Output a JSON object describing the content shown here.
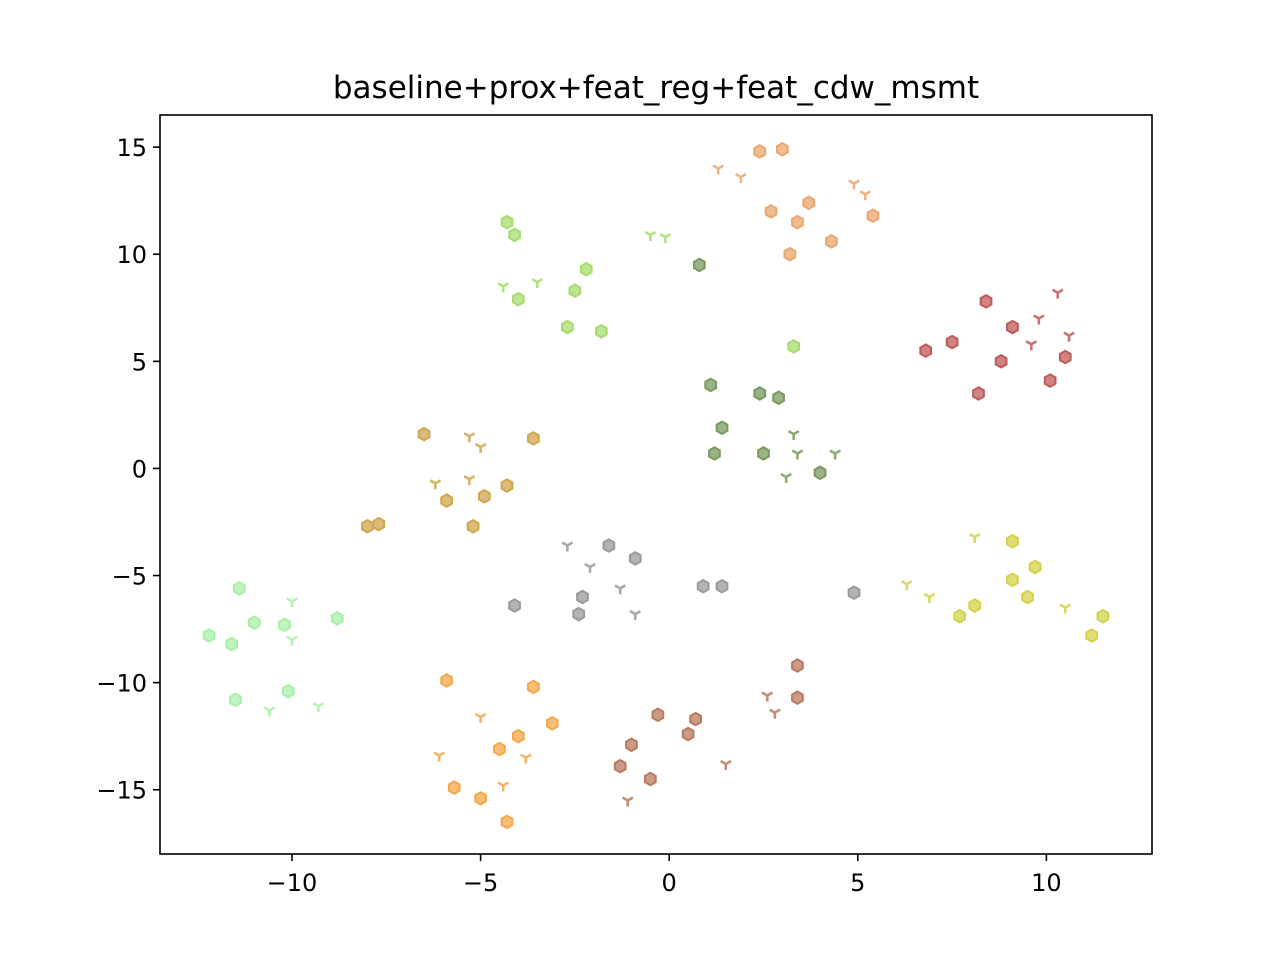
{
  "chart_data": {
    "type": "scatter",
    "title": "baseline+prox+feat_reg+feat_cdw_msmt",
    "xlabel": "",
    "ylabel": "",
    "xlim": [
      -13.5,
      12.8
    ],
    "ylim": [
      -18.0,
      16.5
    ],
    "xticks": [
      -10,
      -5,
      0,
      5,
      10
    ],
    "yticks": [
      -15,
      -10,
      -5,
      0,
      5,
      10,
      15
    ],
    "xtick_labels": [
      "−10",
      "−5",
      "0",
      "5",
      "10"
    ],
    "ytick_labels": [
      "−15",
      "−10",
      "−5",
      "0",
      "5",
      "10",
      "15"
    ],
    "grid": false,
    "legend": "none",
    "marker_legend": {
      "hexagon": "hexagon marker",
      "tri_down": "Y-shaped marker"
    },
    "series": [
      {
        "color": "#e8a86e",
        "points": [
          {
            "x": 2.4,
            "y": 14.8,
            "m": "hexagon"
          },
          {
            "x": 3.0,
            "y": 14.9,
            "m": "hexagon"
          },
          {
            "x": 1.3,
            "y": 14.0,
            "m": "tri_down"
          },
          {
            "x": 1.9,
            "y": 13.6,
            "m": "tri_down"
          },
          {
            "x": 4.9,
            "y": 13.3,
            "m": "tri_down"
          },
          {
            "x": 5.2,
            "y": 12.8,
            "m": "tri_down"
          },
          {
            "x": 3.7,
            "y": 12.4,
            "m": "hexagon"
          },
          {
            "x": 2.7,
            "y": 12.0,
            "m": "hexagon"
          },
          {
            "x": 5.4,
            "y": 11.8,
            "m": "hexagon"
          },
          {
            "x": 3.4,
            "y": 11.5,
            "m": "hexagon"
          },
          {
            "x": 4.3,
            "y": 10.6,
            "m": "hexagon"
          },
          {
            "x": 3.2,
            "y": 10.0,
            "m": "hexagon"
          }
        ]
      },
      {
        "color": "#a8dc6e",
        "points": [
          {
            "x": -4.3,
            "y": 11.5,
            "m": "hexagon"
          },
          {
            "x": -4.1,
            "y": 10.9,
            "m": "hexagon"
          },
          {
            "x": -0.5,
            "y": 10.9,
            "m": "tri_down"
          },
          {
            "x": -0.1,
            "y": 10.8,
            "m": "tri_down"
          },
          {
            "x": -2.2,
            "y": 9.3,
            "m": "hexagon"
          },
          {
            "x": -3.5,
            "y": 8.7,
            "m": "tri_down"
          },
          {
            "x": -4.4,
            "y": 8.5,
            "m": "tri_down"
          },
          {
            "x": -2.5,
            "y": 8.3,
            "m": "hexagon"
          },
          {
            "x": -4.0,
            "y": 7.9,
            "m": "hexagon"
          },
          {
            "x": -2.7,
            "y": 6.6,
            "m": "hexagon"
          },
          {
            "x": -1.8,
            "y": 6.4,
            "m": "hexagon"
          },
          {
            "x": 3.3,
            "y": 5.7,
            "m": "hexagon"
          }
        ]
      },
      {
        "color": "#7a9a5e",
        "points": [
          {
            "x": 0.8,
            "y": 9.5,
            "m": "hexagon"
          },
          {
            "x": 1.1,
            "y": 3.9,
            "m": "hexagon"
          },
          {
            "x": 2.4,
            "y": 3.5,
            "m": "hexagon"
          },
          {
            "x": 2.9,
            "y": 3.3,
            "m": "hexagon"
          },
          {
            "x": 1.4,
            "y": 1.9,
            "m": "hexagon"
          },
          {
            "x": 3.3,
            "y": 1.6,
            "m": "tri_down"
          },
          {
            "x": 1.2,
            "y": 0.7,
            "m": "hexagon"
          },
          {
            "x": 2.5,
            "y": 0.7,
            "m": "hexagon"
          },
          {
            "x": 3.4,
            "y": 0.7,
            "m": "tri_down"
          },
          {
            "x": 4.4,
            "y": 0.7,
            "m": "tri_down"
          },
          {
            "x": 4.0,
            "y": -0.2,
            "m": "hexagon"
          },
          {
            "x": 3.1,
            "y": -0.4,
            "m": "tri_down"
          }
        ]
      },
      {
        "color": "#c05a5a",
        "points": [
          {
            "x": 10.3,
            "y": 8.2,
            "m": "tri_down"
          },
          {
            "x": 8.4,
            "y": 7.8,
            "m": "hexagon"
          },
          {
            "x": 9.8,
            "y": 7.0,
            "m": "tri_down"
          },
          {
            "x": 9.1,
            "y": 6.6,
            "m": "hexagon"
          },
          {
            "x": 10.6,
            "y": 6.2,
            "m": "tri_down"
          },
          {
            "x": 7.5,
            "y": 5.9,
            "m": "hexagon"
          },
          {
            "x": 9.6,
            "y": 5.8,
            "m": "tri_down"
          },
          {
            "x": 6.8,
            "y": 5.5,
            "m": "hexagon"
          },
          {
            "x": 10.5,
            "y": 5.2,
            "m": "hexagon"
          },
          {
            "x": 8.8,
            "y": 5.0,
            "m": "hexagon"
          },
          {
            "x": 10.1,
            "y": 4.1,
            "m": "hexagon"
          },
          {
            "x": 8.2,
            "y": 3.5,
            "m": "hexagon"
          }
        ]
      },
      {
        "color": "#d0a64e",
        "points": [
          {
            "x": -6.5,
            "y": 1.6,
            "m": "hexagon"
          },
          {
            "x": -5.3,
            "y": 1.5,
            "m": "tri_down"
          },
          {
            "x": -3.6,
            "y": 1.4,
            "m": "hexagon"
          },
          {
            "x": -5.0,
            "y": 1.0,
            "m": "tri_down"
          },
          {
            "x": -5.3,
            "y": -0.5,
            "m": "tri_down"
          },
          {
            "x": -6.2,
            "y": -0.7,
            "m": "tri_down"
          },
          {
            "x": -4.3,
            "y": -0.8,
            "m": "hexagon"
          },
          {
            "x": -4.9,
            "y": -1.3,
            "m": "hexagon"
          },
          {
            "x": -5.9,
            "y": -1.5,
            "m": "hexagon"
          },
          {
            "x": -8.0,
            "y": -2.7,
            "m": "hexagon"
          },
          {
            "x": -7.7,
            "y": -2.6,
            "m": "hexagon"
          },
          {
            "x": -5.2,
            "y": -2.7,
            "m": "hexagon"
          }
        ]
      },
      {
        "color": "#9a9a9a",
        "points": [
          {
            "x": -2.7,
            "y": -3.6,
            "m": "tri_down"
          },
          {
            "x": -1.6,
            "y": -3.6,
            "m": "hexagon"
          },
          {
            "x": -0.9,
            "y": -4.2,
            "m": "hexagon"
          },
          {
            "x": -2.1,
            "y": -4.6,
            "m": "tri_down"
          },
          {
            "x": 0.9,
            "y": -5.5,
            "m": "hexagon"
          },
          {
            "x": 1.4,
            "y": -5.5,
            "m": "hexagon"
          },
          {
            "x": -1.3,
            "y": -5.6,
            "m": "tri_down"
          },
          {
            "x": 4.9,
            "y": -5.8,
            "m": "hexagon"
          },
          {
            "x": -2.3,
            "y": -6.0,
            "m": "hexagon"
          },
          {
            "x": -4.1,
            "y": -6.4,
            "m": "hexagon"
          },
          {
            "x": -2.4,
            "y": -6.8,
            "m": "hexagon"
          },
          {
            "x": -0.9,
            "y": -6.8,
            "m": "tri_down"
          }
        ]
      },
      {
        "color": "#d4d24a",
        "points": [
          {
            "x": 8.1,
            "y": -3.2,
            "m": "tri_down"
          },
          {
            "x": 9.1,
            "y": -3.4,
            "m": "hexagon"
          },
          {
            "x": 9.7,
            "y": -4.6,
            "m": "hexagon"
          },
          {
            "x": 9.1,
            "y": -5.2,
            "m": "hexagon"
          },
          {
            "x": 6.3,
            "y": -5.4,
            "m": "tri_down"
          },
          {
            "x": 6.9,
            "y": -6.0,
            "m": "tri_down"
          },
          {
            "x": 9.5,
            "y": -6.0,
            "m": "hexagon"
          },
          {
            "x": 8.1,
            "y": -6.4,
            "m": "hexagon"
          },
          {
            "x": 10.5,
            "y": -6.5,
            "m": "tri_down"
          },
          {
            "x": 7.7,
            "y": -6.9,
            "m": "hexagon"
          },
          {
            "x": 11.5,
            "y": -6.9,
            "m": "hexagon"
          },
          {
            "x": 11.2,
            "y": -7.8,
            "m": "hexagon"
          }
        ]
      },
      {
        "color": "#a8f0a8",
        "points": [
          {
            "x": -11.4,
            "y": -5.6,
            "m": "hexagon"
          },
          {
            "x": -10.0,
            "y": -6.2,
            "m": "tri_down"
          },
          {
            "x": -8.8,
            "y": -7.0,
            "m": "hexagon"
          },
          {
            "x": -11.0,
            "y": -7.2,
            "m": "hexagon"
          },
          {
            "x": -10.2,
            "y": -7.3,
            "m": "hexagon"
          },
          {
            "x": -12.2,
            "y": -7.8,
            "m": "hexagon"
          },
          {
            "x": -10.0,
            "y": -8.0,
            "m": "tri_down"
          },
          {
            "x": -11.6,
            "y": -8.2,
            "m": "hexagon"
          },
          {
            "x": -10.1,
            "y": -10.4,
            "m": "hexagon"
          },
          {
            "x": -11.5,
            "y": -10.8,
            "m": "hexagon"
          },
          {
            "x": -9.3,
            "y": -11.1,
            "m": "tri_down"
          },
          {
            "x": -10.6,
            "y": -11.3,
            "m": "tri_down"
          }
        ]
      },
      {
        "color": "#f5a84a",
        "points": [
          {
            "x": -5.9,
            "y": -9.9,
            "m": "hexagon"
          },
          {
            "x": -3.6,
            "y": -10.2,
            "m": "hexagon"
          },
          {
            "x": -5.0,
            "y": -11.6,
            "m": "tri_down"
          },
          {
            "x": -3.1,
            "y": -11.9,
            "m": "hexagon"
          },
          {
            "x": -4.0,
            "y": -12.5,
            "m": "hexagon"
          },
          {
            "x": -4.5,
            "y": -13.1,
            "m": "hexagon"
          },
          {
            "x": -6.1,
            "y": -13.4,
            "m": "tri_down"
          },
          {
            "x": -3.8,
            "y": -13.5,
            "m": "tri_down"
          },
          {
            "x": -5.7,
            "y": -14.9,
            "m": "hexagon"
          },
          {
            "x": -4.4,
            "y": -14.8,
            "m": "tri_down"
          },
          {
            "x": -5.0,
            "y": -15.4,
            "m": "hexagon"
          },
          {
            "x": -4.3,
            "y": -16.5,
            "m": "hexagon"
          }
        ]
      },
      {
        "color": "#b87a5e",
        "points": [
          {
            "x": 3.4,
            "y": -9.2,
            "m": "hexagon"
          },
          {
            "x": 2.6,
            "y": -10.6,
            "m": "tri_down"
          },
          {
            "x": 3.4,
            "y": -10.7,
            "m": "hexagon"
          },
          {
            "x": 2.8,
            "y": -11.4,
            "m": "tri_down"
          },
          {
            "x": -0.3,
            "y": -11.5,
            "m": "hexagon"
          },
          {
            "x": 0.7,
            "y": -11.7,
            "m": "hexagon"
          },
          {
            "x": 0.5,
            "y": -12.4,
            "m": "hexagon"
          },
          {
            "x": -1.0,
            "y": -12.9,
            "m": "hexagon"
          },
          {
            "x": -1.3,
            "y": -13.9,
            "m": "hexagon"
          },
          {
            "x": 1.5,
            "y": -13.8,
            "m": "tri_down"
          },
          {
            "x": -0.5,
            "y": -14.5,
            "m": "hexagon"
          },
          {
            "x": -1.1,
            "y": -15.5,
            "m": "tri_down"
          }
        ]
      }
    ]
  }
}
